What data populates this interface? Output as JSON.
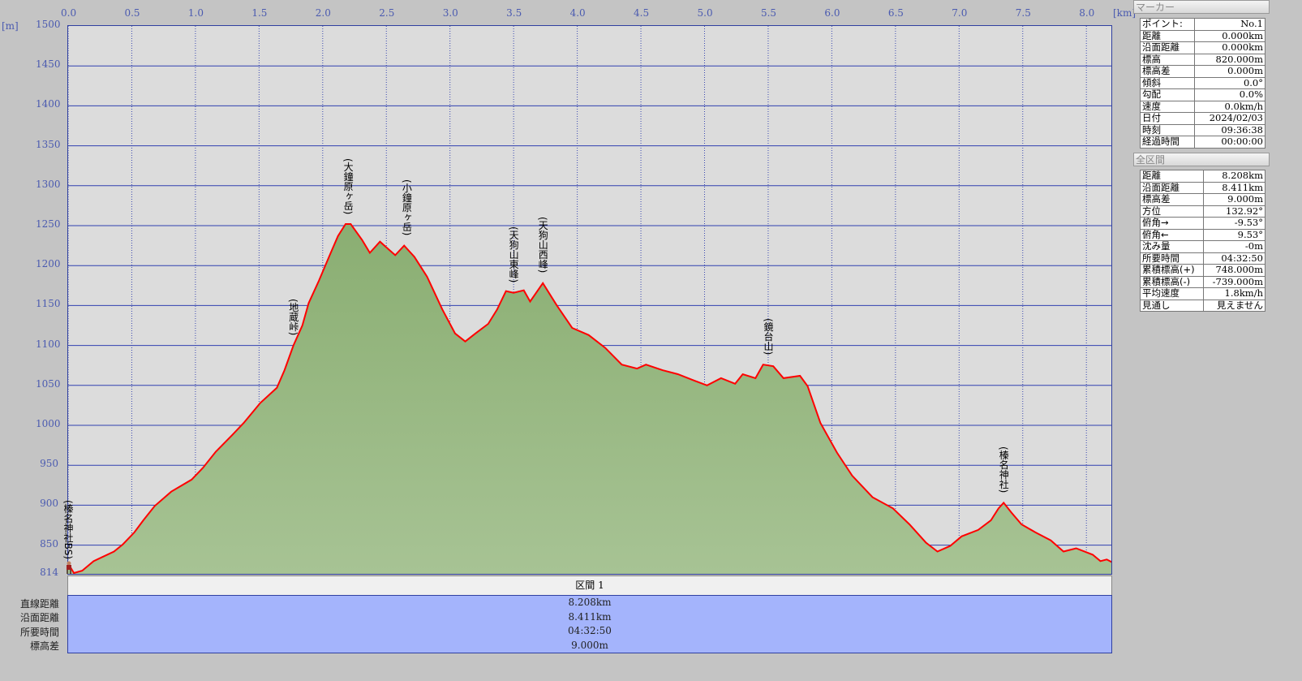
{
  "chart_data": {
    "type": "area",
    "xlabel": "[km]",
    "ylabel": "[m]",
    "xlim": [
      0,
      8.208
    ],
    "ylim": [
      814,
      1500
    ],
    "x_ticks": [
      "0.0",
      "0.5",
      "1.0",
      "1.5",
      "2.0",
      "2.5",
      "3.0",
      "3.5",
      "4.0",
      "4.5",
      "5.0",
      "5.5",
      "6.0",
      "6.5",
      "7.0",
      "7.5",
      "8.0"
    ],
    "y_ticks": [
      "1500",
      "1450",
      "1400",
      "1350",
      "1300",
      "1250",
      "1200",
      "1150",
      "1100",
      "1050",
      "1000",
      "950",
      "900",
      "850",
      "814"
    ],
    "grid": true,
    "line_color": "#ff0000",
    "fill_color": "#98b87f",
    "points": [
      [
        0,
        827
      ],
      [
        0.045,
        815
      ],
      [
        0.11,
        818
      ],
      [
        0.2,
        830
      ],
      [
        0.36,
        842
      ],
      [
        0.43,
        851
      ],
      [
        0.52,
        866
      ],
      [
        0.59,
        881
      ],
      [
        0.68,
        899
      ],
      [
        0.81,
        917
      ],
      [
        0.97,
        932
      ],
      [
        1.06,
        947
      ],
      [
        1.16,
        967
      ],
      [
        1.29,
        988
      ],
      [
        1.38,
        1003
      ],
      [
        1.51,
        1028
      ],
      [
        1.64,
        1047
      ],
      [
        1.7,
        1069
      ],
      [
        1.77,
        1100
      ],
      [
        1.84,
        1125
      ],
      [
        1.89,
        1153
      ],
      [
        1.97,
        1181
      ],
      [
        2.05,
        1211
      ],
      [
        2.12,
        1237
      ],
      [
        2.18,
        1252
      ],
      [
        2.22,
        1252
      ],
      [
        2.31,
        1232
      ],
      [
        2.37,
        1216
      ],
      [
        2.45,
        1230
      ],
      [
        2.52,
        1220
      ],
      [
        2.57,
        1213
      ],
      [
        2.64,
        1225
      ],
      [
        2.72,
        1211
      ],
      [
        2.82,
        1186
      ],
      [
        2.94,
        1145
      ],
      [
        3.04,
        1115
      ],
      [
        3.12,
        1105
      ],
      [
        3.2,
        1115
      ],
      [
        3.3,
        1127
      ],
      [
        3.37,
        1145
      ],
      [
        3.44,
        1168
      ],
      [
        3.5,
        1166
      ],
      [
        3.58,
        1169
      ],
      [
        3.63,
        1155
      ],
      [
        3.73,
        1178
      ],
      [
        3.84,
        1150
      ],
      [
        3.96,
        1122
      ],
      [
        4.09,
        1113
      ],
      [
        4.22,
        1097
      ],
      [
        4.35,
        1076
      ],
      [
        4.47,
        1071
      ],
      [
        4.54,
        1076
      ],
      [
        4.67,
        1069
      ],
      [
        4.79,
        1064
      ],
      [
        4.92,
        1056
      ],
      [
        5.02,
        1050
      ],
      [
        5.13,
        1059
      ],
      [
        5.24,
        1052
      ],
      [
        5.3,
        1064
      ],
      [
        5.4,
        1059
      ],
      [
        5.46,
        1076
      ],
      [
        5.54,
        1074
      ],
      [
        5.62,
        1059
      ],
      [
        5.75,
        1062
      ],
      [
        5.81,
        1049
      ],
      [
        5.91,
        1003
      ],
      [
        6.04,
        966
      ],
      [
        6.16,
        937
      ],
      [
        6.32,
        910
      ],
      [
        6.48,
        896
      ],
      [
        6.61,
        876
      ],
      [
        6.74,
        853
      ],
      [
        6.83,
        842
      ],
      [
        6.93,
        849
      ],
      [
        7.02,
        861
      ],
      [
        7.15,
        869
      ],
      [
        7.25,
        881
      ],
      [
        7.31,
        896
      ],
      [
        7.35,
        903
      ],
      [
        7.41,
        891
      ],
      [
        7.49,
        876
      ],
      [
        7.6,
        866
      ],
      [
        7.72,
        856
      ],
      [
        7.82,
        842
      ],
      [
        7.92,
        846
      ],
      [
        8.05,
        838
      ],
      [
        8.11,
        830
      ],
      [
        8.16,
        832
      ],
      [
        8.208,
        828
      ]
    ],
    "waypoints": [
      {
        "label": "(榛名神社BS)",
        "km": 0,
        "elev": 820
      },
      {
        "label": "(地蔵峠)",
        "km": 1.77,
        "elev": 1100
      },
      {
        "label": "(大鐘原ヶ岳)",
        "km": 2.2,
        "elev": 1252
      },
      {
        "label": "(小鐘原ヶ岳)",
        "km": 2.66,
        "elev": 1225
      },
      {
        "label": "(天狗山東峰)",
        "km": 3.5,
        "elev": 1166
      },
      {
        "label": "(天狗山西峰)",
        "km": 3.73,
        "elev": 1178
      },
      {
        "label": "(鏡台山)",
        "km": 5.5,
        "elev": 1076
      },
      {
        "label": "(榛名神社)",
        "km": 7.35,
        "elev": 903
      }
    ]
  },
  "section": {
    "header": "区間 1",
    "rows": [
      {
        "label": "直線距離",
        "value": "8.208km"
      },
      {
        "label": "沿面距離",
        "value": "8.411km"
      },
      {
        "label": "所要時間",
        "value": "04:32:50"
      },
      {
        "label": "標高差",
        "value": "9.000m"
      }
    ]
  },
  "marker": {
    "title": "マーカー",
    "rows": [
      [
        "ポイント:",
        "No.1"
      ],
      [
        "距離",
        "0.000km"
      ],
      [
        "沿面距離",
        "0.000km"
      ],
      [
        "標高",
        "820.000m"
      ],
      [
        "標高差",
        "0.000m"
      ],
      [
        "傾斜",
        "0.0°"
      ],
      [
        "勾配",
        "0.0%"
      ],
      [
        "速度",
        "0.0km/h"
      ],
      [
        "日付",
        "2024/02/03"
      ],
      [
        "時刻",
        "09:36:38"
      ],
      [
        "経過時間",
        "00:00:00"
      ]
    ]
  },
  "total": {
    "title": "全区間",
    "rows": [
      [
        "距離",
        "8.208km"
      ],
      [
        "沿面距離",
        "8.411km"
      ],
      [
        "標高差",
        "9.000m"
      ],
      [
        "方位",
        "132.92°"
      ],
      [
        "俯角→",
        "-9.53°"
      ],
      [
        "俯角←",
        "9.53°"
      ],
      [
        "沈み量",
        "-0m"
      ],
      [
        "所要時間",
        "04:32:50"
      ],
      [
        "累積標高(+)",
        "748.000m"
      ],
      [
        "累積標高(-)",
        "-739.000m"
      ],
      [
        "平均速度",
        "1.8km/h"
      ],
      [
        "見通し",
        "見えません"
      ]
    ]
  }
}
